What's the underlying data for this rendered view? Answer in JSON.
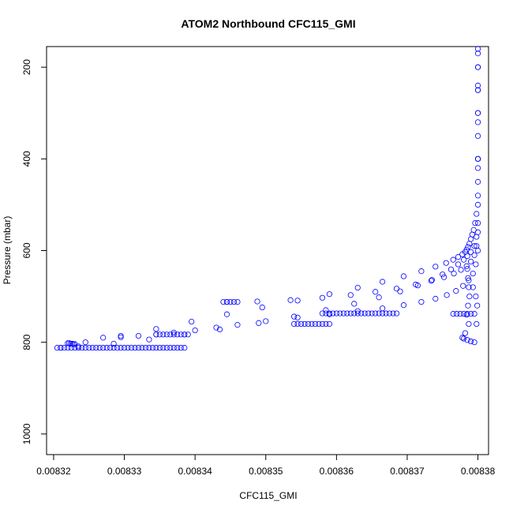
{
  "chart_data": {
    "type": "scatter",
    "title": "ATOM2 Northbound CFC115_GMI",
    "xlabel": "CFC115_GMI",
    "ylabel": "Pressure (mbar)",
    "xlim": [
      0.008319,
      0.0083815
    ],
    "ylim": [
      1045,
      155
    ],
    "y_reversed": true,
    "x_ticks": [
      "0.00832",
      "0.00833",
      "0.00834",
      "0.00835",
      "0.00836",
      "0.00837",
      "0.00838"
    ],
    "y_ticks": [
      "200",
      "400",
      "600",
      "800",
      "1000"
    ],
    "marker": "open-circle",
    "color": "#0000ff",
    "grid": false,
    "series": [
      {
        "x": [
          0.00838,
          0.00838,
          0.00838,
          0.00838,
          0.00838,
          0.00838,
          0.00838,
          0.00838,
          0.0083798,
          0.0083796,
          0.0083794,
          0.0083792,
          0.008379,
          0.0083788,
          0.0083786,
          0.0083784,
          0.0083782,
          0.0083778,
          0.0083772,
          0.0083765,
          0.0083755,
          0.008374,
          0.008372,
          0.0083695,
          0.0083665,
          0.008363,
          0.008359,
          0.0083545,
          0.0083495,
          0.0083445,
          0.0083395,
          0.0083345,
          0.0083295,
          0.0083245,
          0.008321
        ],
        "y": [
          160,
          200,
          250,
          300,
          350,
          400,
          450,
          500,
          520,
          540,
          555,
          565,
          575,
          585,
          592,
          598,
          603,
          608,
          614,
          620,
          627,
          635,
          645,
          656,
          668,
          681,
          695,
          709,
          724,
          739,
          755,
          771,
          786,
          800,
          812
        ]
      },
      {
        "x": [
          0.00838,
          0.00838,
          0.00838,
          0.00838,
          0.00838,
          0.00838,
          0.0083798,
          0.0083795,
          0.008379,
          0.0083785,
          0.008378,
          0.0083772,
          0.0083762,
          0.008375,
          0.0083735,
          0.0083715,
          0.008369,
          0.008366,
          0.0083625,
          0.0083585,
          0.008354,
          0.008349,
          0.0083435,
          0.0083385,
          0.0083335,
          0.0083285,
          0.0083235,
          0.0083205
        ],
        "y": [
          170,
          240,
          320,
          400,
          480,
          540,
          570,
          590,
          603,
          612,
          620,
          630,
          641,
          652,
          664,
          676,
          689,
          702,
          716,
          730,
          744,
          758,
          772,
          783,
          794,
          803,
          809,
          812
        ]
      },
      {
        "x": [
          0.00838,
          0.00838,
          0.00838,
          0.00838,
          0.0083798,
          0.0083795,
          0.008379,
          0.0083784,
          0.0083776,
          0.0083766,
          0.0083752,
          0.0083734,
          0.0083712,
          0.0083685,
          0.0083655,
          0.008362,
          0.008358,
          0.0083535,
          0.0083488,
          0.0083445
        ],
        "y": [
          200,
          300,
          420,
          560,
          590,
          610,
          624,
          634,
          642,
          650,
          658,
          666,
          674,
          683,
          690,
          697,
          703,
          708,
          711,
          712
        ]
      },
      {
        "x": [
          0.00838,
          0.00838,
          0.00838,
          0.0083797,
          0.0083793,
          0.0083787,
          0.0083779,
          0.0083769,
          0.0083756,
          0.008374,
          0.008372,
          0.0083695,
          0.0083665,
          0.008363,
          0.008359,
          0.0083545,
          0.00835,
          0.008346,
          0.008343,
          0.00834,
          0.008337,
          0.0083345,
          0.008332,
          0.0083295,
          0.008327
        ],
        "y": [
          250,
          400,
          600,
          630,
          650,
          665,
          677,
          688,
          697,
          705,
          712,
          719,
          726,
          732,
          739,
          746,
          754,
          762,
          768,
          774,
          779,
          783,
          786,
          789,
          790
        ]
      },
      {
        "x": [
          0.008321,
          0.0083215,
          0.008322,
          0.0083225,
          0.008323,
          0.0083235,
          0.008324,
          0.0083245,
          0.008325,
          0.0083255,
          0.008326,
          0.0083265,
          0.008327,
          0.0083275,
          0.008328,
          0.0083285,
          0.008329,
          0.0083295,
          0.00833,
          0.0083305,
          0.008331,
          0.0083315,
          0.008332,
          0.0083325,
          0.008333,
          0.0083335,
          0.008334,
          0.0083345,
          0.008335,
          0.0083355,
          0.008336,
          0.0083365,
          0.008337,
          0.0083375,
          0.008338,
          0.0083385
        ],
        "y": [
          812,
          812,
          812,
          812,
          812,
          812,
          812,
          812,
          812,
          812,
          812,
          812,
          812,
          812,
          812,
          812,
          812,
          812,
          812,
          812,
          812,
          812,
          812,
          812,
          812,
          812,
          812,
          812,
          812,
          812,
          812,
          812,
          812,
          812,
          812,
          812
        ]
      },
      {
        "x": [
          0.0083345,
          0.008335,
          0.0083355,
          0.008336,
          0.0083365,
          0.008337,
          0.0083375,
          0.008338,
          0.0083385,
          0.008339
        ],
        "y": [
          783,
          783,
          783,
          783,
          783,
          783,
          783,
          783,
          783,
          783
        ]
      },
      {
        "x": [
          0.008344,
          0.0083445,
          0.008345,
          0.0083455,
          0.008346
        ],
        "y": [
          712,
          712,
          712,
          712,
          712
        ]
      },
      {
        "x": [
          0.008354,
          0.0083545,
          0.008355,
          0.0083555,
          0.008356,
          0.0083565,
          0.008357,
          0.0083575,
          0.008358,
          0.0083585,
          0.008359
        ],
        "y": [
          760,
          760,
          760,
          760,
          760,
          760,
          760,
          760,
          760,
          760,
          760
        ]
      },
      {
        "x": [
          0.008358,
          0.0083585,
          0.008359,
          0.0083595,
          0.00836,
          0.0083605,
          0.008361,
          0.0083615,
          0.008362,
          0.0083625,
          0.008363,
          0.0083635,
          0.008364,
          0.0083645,
          0.008365,
          0.0083655,
          0.008366,
          0.0083665,
          0.008367,
          0.0083675,
          0.008368,
          0.0083685
        ],
        "y": [
          737,
          737,
          737,
          737,
          737,
          737,
          737,
          737,
          737,
          737,
          737,
          737,
          737,
          737,
          737,
          737,
          737,
          737,
          737,
          737,
          737,
          737
        ]
      },
      {
        "x": [
          0.0083765,
          0.008377,
          0.0083775,
          0.008378,
          0.0083785,
          0.008379,
          0.0083795
        ],
        "y": [
          738,
          738,
          738,
          738,
          738,
          738,
          738
        ]
      },
      {
        "x": [
          0.0083785,
          0.0083786,
          0.0083787,
          0.0083788,
          0.0083786,
          0.0083784,
          0.0083787,
          0.0083782,
          0.0083778,
          0.008378,
          0.0083785,
          0.008379,
          0.0083795,
          0.0083798,
          0.0083799,
          0.0083797,
          0.0083793
        ],
        "y": [
          640,
          660,
          680,
          700,
          720,
          740,
          760,
          780,
          790,
          792,
          795,
          798,
          800,
          760,
          720,
          700,
          680
        ]
      },
      {
        "x": [
          0.008322,
          0.0083222,
          0.0083224,
          0.0083226,
          0.0083228,
          0.008323
        ],
        "y": [
          802,
          802,
          803,
          803,
          804,
          804
        ]
      }
    ]
  }
}
